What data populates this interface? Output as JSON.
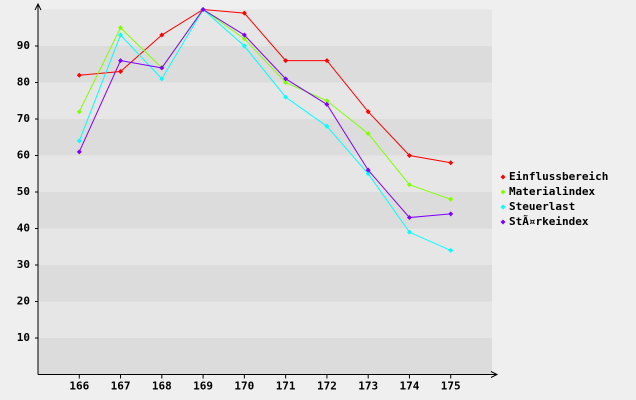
{
  "chart_data": {
    "type": "line",
    "categories": [
      "166",
      "167",
      "168",
      "169",
      "170",
      "171",
      "172",
      "173",
      "174",
      "175"
    ],
    "series": [
      {
        "name": "Einflussbereich",
        "color": "#ff0000",
        "values": [
          82,
          83,
          93,
          100,
          99,
          86,
          86,
          72,
          60,
          58
        ]
      },
      {
        "name": "Materialindex",
        "color": "#80ff00",
        "values": [
          72,
          95,
          84,
          100,
          92,
          80,
          75,
          66,
          52,
          48
        ]
      },
      {
        "name": "Steuerlast",
        "color": "#00ffff",
        "values": [
          64,
          93,
          81,
          100,
          90,
          76,
          68,
          55,
          39,
          34
        ]
      },
      {
        "name": "StÃ¤rkeindex",
        "color": "#8000ff",
        "values": [
          61,
          86,
          84,
          100,
          93,
          81,
          74,
          56,
          43,
          44
        ]
      }
    ],
    "ylim": [
      0,
      100
    ],
    "yticks": [
      10,
      20,
      30,
      40,
      50,
      60,
      70,
      80,
      90
    ],
    "grid": true,
    "legend": "right"
  }
}
